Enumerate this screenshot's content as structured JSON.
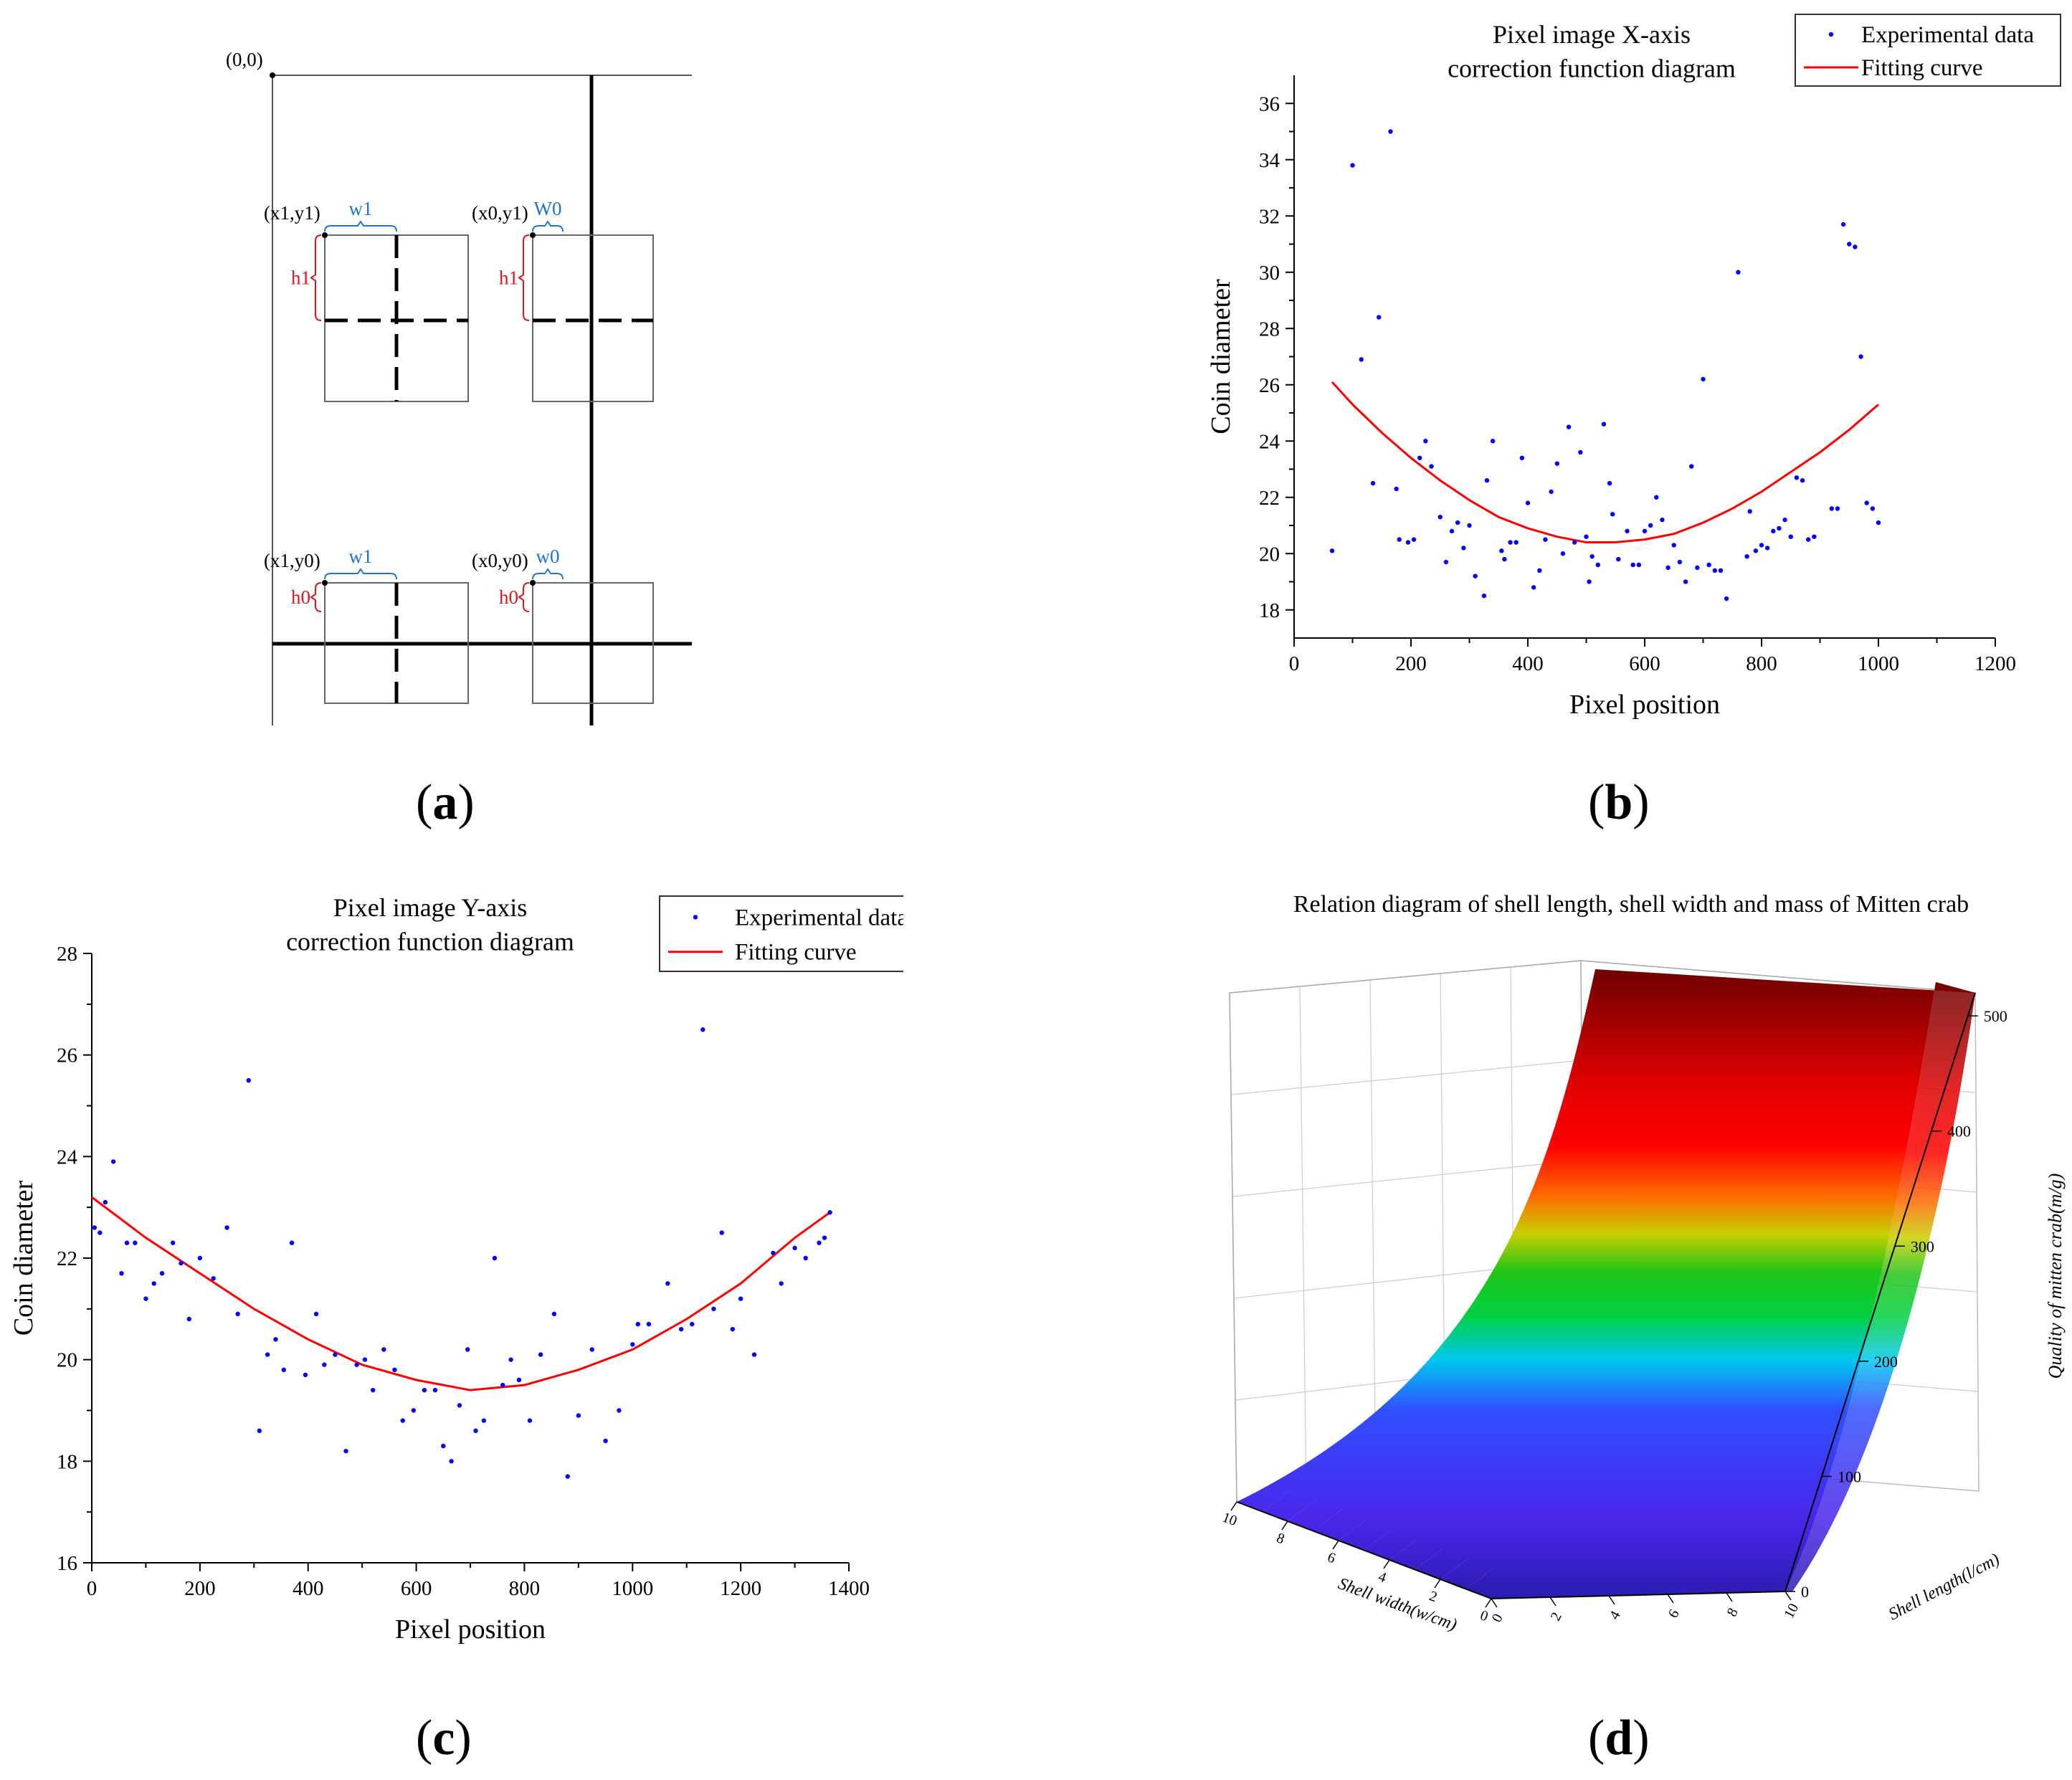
{
  "panel_labels": {
    "a": {
      "open": "(",
      "letter": "a",
      "close": ")"
    },
    "b": {
      "open": "(",
      "letter": "b",
      "close": ")"
    },
    "c": {
      "open": "(",
      "letter": "c",
      "close": ")"
    },
    "d": {
      "open": "(",
      "letter": "d",
      "close": ")"
    }
  },
  "diagram": {
    "origin": "(0,0)",
    "cells": [
      {
        "corner": "(x1,y1)",
        "width": "w1",
        "height": "h1"
      },
      {
        "corner": "(x0,y1)",
        "width": "W0",
        "height": "h1"
      },
      {
        "corner": "(x1,y0)",
        "width": "w1",
        "height": "h0"
      },
      {
        "corner": "(x0,y0)",
        "width": "w0",
        "height": "h0"
      }
    ],
    "colors": {
      "width_label": "#1f73d2",
      "height_label": "#e0151b"
    }
  },
  "chart_data": [
    {
      "type": "scatter",
      "title": [
        "Pixel image X-axis",
        "correction function diagram"
      ],
      "xlabel": "Pixel position",
      "ylabel": "Coin diameter",
      "xlim": [
        0,
        1200
      ],
      "ylim": [
        17,
        37
      ],
      "xticks": [
        0,
        200,
        400,
        600,
        800,
        1000,
        1200
      ],
      "yticks": [
        18,
        20,
        22,
        24,
        26,
        28,
        30,
        32,
        34,
        36
      ],
      "legend": [
        "Experimental data",
        "Fitting curve"
      ],
      "legend_position": "top-right",
      "colors": {
        "points": "#0000ff",
        "curve": "#ff0000"
      },
      "series": [
        {
          "name": "Experimental data",
          "x": [
            65,
            100,
            115,
            135,
            145,
            165,
            175,
            180,
            195,
            205,
            215,
            225,
            235,
            250,
            260,
            270,
            280,
            290,
            300,
            310,
            325,
            330,
            340,
            355,
            360,
            370,
            380,
            390,
            400,
            410,
            420,
            430,
            440,
            450,
            460,
            470,
            480,
            490,
            500,
            505,
            510,
            520,
            530,
            540,
            545,
            555,
            570,
            580,
            590,
            600,
            610,
            620,
            630,
            640,
            650,
            660,
            670,
            680,
            690,
            700,
            710,
            720,
            730,
            740,
            760,
            775,
            780,
            790,
            800,
            810,
            820,
            830,
            840,
            850,
            860,
            870,
            880,
            890,
            920,
            930,
            940,
            950,
            960,
            970,
            980,
            990,
            1000
          ],
          "y": [
            20.1,
            33.8,
            26.9,
            22.5,
            28.4,
            35.0,
            22.3,
            20.5,
            20.4,
            20.5,
            23.4,
            24.0,
            23.1,
            21.3,
            19.7,
            20.8,
            21.1,
            20.2,
            21.0,
            19.2,
            18.5,
            22.6,
            24.0,
            20.1,
            19.8,
            20.4,
            20.4,
            23.4,
            21.8,
            18.8,
            19.4,
            20.5,
            22.2,
            23.2,
            20.0,
            24.5,
            20.4,
            23.6,
            20.6,
            19.0,
            19.9,
            19.6,
            24.6,
            22.5,
            21.4,
            19.8,
            20.8,
            19.6,
            19.6,
            20.8,
            21.0,
            22.0,
            21.2,
            19.5,
            20.3,
            19.7,
            19.0,
            23.1,
            19.5,
            26.2,
            19.6,
            19.4,
            19.4,
            18.4,
            30.0,
            19.9,
            21.5,
            20.1,
            20.3,
            20.2,
            20.8,
            20.9,
            21.2,
            20.6,
            22.7,
            22.6,
            20.5,
            20.6,
            21.6,
            21.6,
            31.7,
            31.0,
            30.9,
            27.0,
            21.8,
            21.6,
            21.1
          ]
        },
        {
          "name": "Fitting curve",
          "x": [
            65,
            100,
            150,
            200,
            250,
            300,
            350,
            400,
            450,
            500,
            550,
            600,
            650,
            700,
            750,
            800,
            850,
            900,
            950,
            1000
          ],
          "y": [
            26.1,
            25.3,
            24.3,
            23.4,
            22.6,
            21.9,
            21.3,
            20.9,
            20.6,
            20.4,
            20.4,
            20.5,
            20.7,
            21.1,
            21.6,
            22.2,
            22.9,
            23.6,
            24.4,
            25.3
          ]
        }
      ]
    },
    {
      "type": "scatter",
      "title": [
        "Pixel image Y-axis",
        "correction function diagram"
      ],
      "xlabel": "Pixel position",
      "ylabel": "Coin diameter",
      "xlim": [
        0,
        1400
      ],
      "ylim": [
        16,
        28
      ],
      "xticks": [
        0,
        200,
        400,
        600,
        800,
        1000,
        1200,
        1400
      ],
      "yticks": [
        16,
        18,
        20,
        22,
        24,
        26,
        28
      ],
      "legend": [
        "Experimental data",
        "Fitting curve"
      ],
      "legend_position": "top-right",
      "colors": {
        "points": "#0000ff",
        "curve": "#ff0000"
      },
      "series": [
        {
          "name": "Experimental data",
          "x": [
            5,
            15,
            25,
            40,
            55,
            65,
            80,
            100,
            115,
            130,
            150,
            165,
            180,
            200,
            225,
            250,
            270,
            290,
            310,
            325,
            340,
            355,
            370,
            395,
            415,
            430,
            450,
            470,
            490,
            505,
            520,
            540,
            560,
            575,
            595,
            615,
            635,
            650,
            665,
            680,
            695,
            710,
            725,
            745,
            760,
            775,
            790,
            810,
            830,
            855,
            880,
            900,
            925,
            950,
            975,
            1000,
            1010,
            1030,
            1065,
            1090,
            1110,
            1130,
            1150,
            1165,
            1185,
            1200,
            1225,
            1260,
            1275,
            1300,
            1320,
            1345,
            1355,
            1365
          ],
          "y": [
            22.6,
            22.5,
            23.1,
            23.9,
            21.7,
            22.3,
            22.3,
            21.2,
            21.5,
            21.7,
            22.3,
            21.9,
            20.8,
            22.0,
            21.6,
            22.6,
            20.9,
            25.5,
            18.6,
            20.1,
            20.4,
            19.8,
            22.3,
            19.7,
            20.9,
            19.9,
            20.1,
            18.2,
            19.9,
            20.0,
            19.4,
            20.2,
            19.8,
            18.8,
            19.0,
            19.4,
            19.4,
            18.3,
            18.0,
            19.1,
            20.2,
            18.6,
            18.8,
            22.0,
            19.5,
            20.0,
            19.6,
            18.8,
            20.1,
            20.9,
            17.7,
            18.9,
            20.2,
            18.4,
            19.0,
            20.3,
            20.7,
            20.7,
            21.5,
            20.6,
            20.7,
            26.5,
            21.0,
            22.5,
            20.6,
            21.2,
            20.1,
            22.1,
            21.5,
            22.2,
            22.0,
            22.3,
            22.4,
            22.9
          ]
        },
        {
          "name": "Fitting curve",
          "x": [
            0,
            100,
            200,
            300,
            400,
            500,
            600,
            700,
            800,
            900,
            1000,
            1100,
            1200,
            1300,
            1365
          ],
          "y": [
            23.2,
            22.4,
            21.7,
            21.0,
            20.4,
            19.9,
            19.6,
            19.4,
            19.5,
            19.8,
            20.2,
            20.8,
            21.5,
            22.4,
            22.9
          ]
        }
      ]
    },
    {
      "type": "surface",
      "title": "Relation diagram of shell length, shell width and mass of Mitten crab",
      "xlabel": "Shell width(w/cm)",
      "ylabel": "Shell length(l/cm)",
      "zlabel": "Quality of mitten crab(m/g)",
      "xticks": [
        10,
        8,
        6,
        4,
        2,
        0
      ],
      "yticks": [
        0,
        2,
        4,
        6,
        8,
        10
      ],
      "zticks": [
        0,
        100,
        200,
        300,
        400,
        500
      ],
      "xlim": [
        0,
        10
      ],
      "ylim": [
        0,
        10
      ],
      "zlim": [
        0,
        520
      ],
      "colormap": [
        "#2a1cb0",
        "#4b24e8",
        "#3050ff",
        "#00c8f0",
        "#00d040",
        "#23c418",
        "#c8d000",
        "#ff6a00",
        "#ff0000",
        "#e00000",
        "#a00000",
        "#700000"
      ]
    }
  ]
}
